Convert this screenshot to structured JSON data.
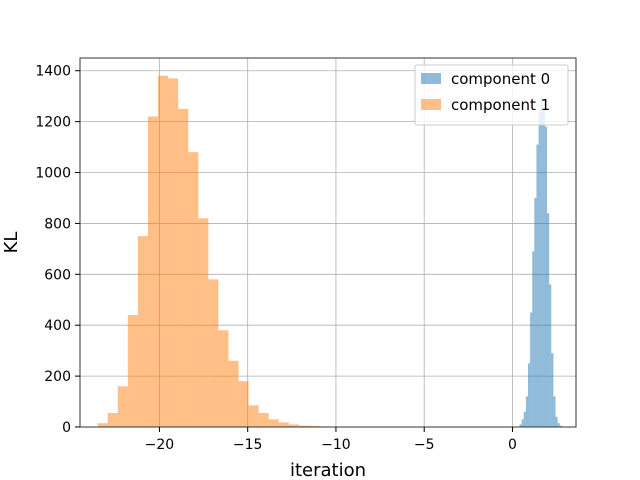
{
  "chart_data": {
    "type": "histogram",
    "title": "",
    "xlabel": "iteration",
    "ylabel": "KL",
    "xlim": [
      -24.5,
      3.6
    ],
    "ylim": [
      0,
      1450
    ],
    "xticks": [
      -20,
      -15,
      -10,
      -5,
      0
    ],
    "yticks": [
      0,
      200,
      400,
      600,
      800,
      1000,
      1200,
      1400
    ],
    "grid": true,
    "legend_position": "top-right",
    "series": [
      {
        "name": "component 0",
        "color": "#1f77b4",
        "alpha": 0.5,
        "bin_edges": [
          0.4,
          0.52,
          0.64,
          0.76,
          0.88,
          1.0,
          1.12,
          1.24,
          1.36,
          1.48,
          1.6,
          1.72,
          1.84,
          1.96,
          2.08,
          2.2,
          2.32,
          2.44,
          2.56,
          2.68,
          2.8
        ],
        "counts": [
          10,
          30,
          60,
          120,
          250,
          450,
          690,
          900,
          1110,
          1240,
          1300,
          1250,
          1180,
          840,
          560,
          290,
          120,
          40,
          15,
          5
        ]
      },
      {
        "name": "component 1",
        "color": "#ff7f0e",
        "alpha": 0.5,
        "bin_edges": [
          -23.5,
          -22.93,
          -22.36,
          -21.79,
          -21.22,
          -20.65,
          -20.08,
          -19.51,
          -18.94,
          -18.37,
          -17.8,
          -17.23,
          -16.66,
          -16.09,
          -15.52,
          -14.95,
          -14.38,
          -13.81,
          -13.24,
          -12.67,
          -12.1,
          -11.53,
          -10.96,
          -10.39,
          -9.82,
          -9.25,
          -8.68,
          -8.11,
          -7.54,
          -6.97,
          -6.4,
          -5.83,
          -5.26
        ],
        "counts": [
          15,
          55,
          160,
          440,
          750,
          1220,
          1380,
          1370,
          1250,
          1080,
          820,
          580,
          380,
          260,
          180,
          85,
          55,
          30,
          18,
          10,
          5,
          4,
          2,
          1,
          0,
          0,
          0,
          0,
          1,
          0,
          0,
          1
        ]
      }
    ]
  }
}
